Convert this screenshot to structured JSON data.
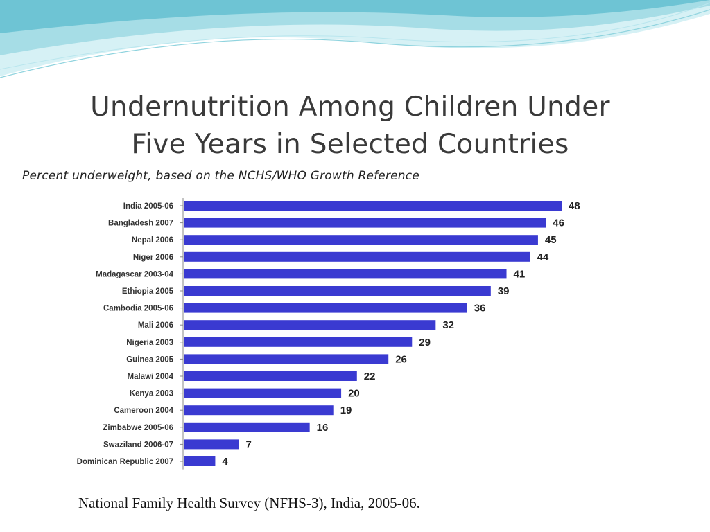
{
  "slide": {
    "title_line1": "Undernutrition Among Children Under",
    "title_line2": "Five Years in Selected Countries",
    "subtitle": "Percent underweight, based on the NCHS/WHO Growth Reference",
    "source": "National Family Health Survey (NFHS-3), India, 2005-06."
  },
  "colors": {
    "bar": "#3a3ad1",
    "wave_light": "#cfeef3",
    "wave_mid": "#8fd3de",
    "wave_dark": "#5bb8cc"
  },
  "chart_data": {
    "type": "bar",
    "orientation": "horizontal",
    "categories": [
      "India 2005-06",
      "Bangladesh 2007",
      "Nepal 2006",
      "Niger 2006",
      "Madagascar 2003-04",
      "Ethiopia 2005",
      "Cambodia 2005-06",
      "Mali 2006",
      "Nigeria 2003",
      "Guinea 2005",
      "Malawi 2004",
      "Kenya 2003",
      "Cameroon 2004",
      "Zimbabwe 2005-06",
      "Swaziland 2006-07",
      "Dominican Republic 2007"
    ],
    "values": [
      48,
      46,
      45,
      44,
      41,
      39,
      36,
      32,
      29,
      26,
      22,
      20,
      19,
      16,
      7,
      4
    ],
    "data_labels": true,
    "grid": false,
    "legend": "none"
  }
}
